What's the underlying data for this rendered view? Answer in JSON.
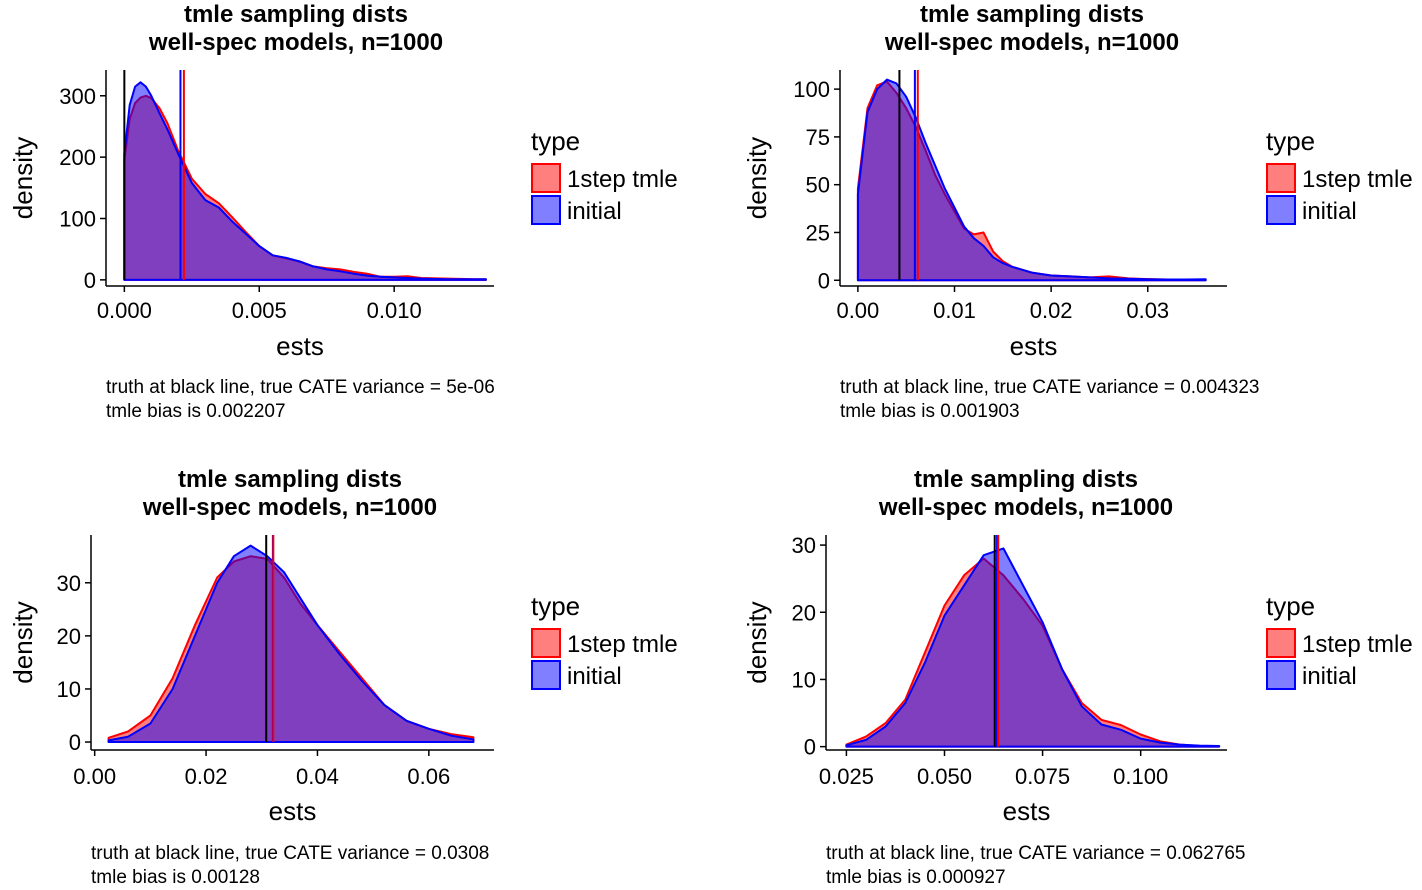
{
  "colors": {
    "tmle": "#ff0000",
    "tmle_fill": "rgba(255,0,0,0.5)",
    "initial": "#0000ff",
    "initial_fill": "rgba(0,0,255,0.5)",
    "truth": "#000000",
    "axis": "#000000"
  },
  "chart_data": [
    {
      "type": "area",
      "title": "tmle sampling dists",
      "subtitle": "well-spec models, n=1000",
      "xlabel": "ests",
      "ylabel": "density",
      "xlim": [
        -0.00068,
        0.0137
      ],
      "ylim": [
        -10,
        342
      ],
      "xticks": [
        0,
        0.005,
        0.01
      ],
      "xtick_labels": [
        "0.000",
        "0.005",
        "0.010"
      ],
      "yticks": [
        0,
        100,
        200,
        300
      ],
      "ytick_labels": [
        "0",
        "100",
        "200",
        "300"
      ],
      "grid": false,
      "legend": {
        "position": "right",
        "title": "type",
        "entries": [
          "1step tmle",
          "initial"
        ]
      },
      "caption": [
        "truth at black line, true CATE variance = 5e-06",
        "tmle bias is 0.002207"
      ],
      "vlines": {
        "truth": 0.0,
        "tmle_mean": 0.002207,
        "initial_mean": 0.00208
      },
      "series": [
        {
          "name": "1step tmle",
          "x": [
            0,
            0.0002,
            0.0004,
            0.0006,
            0.0008,
            0.001,
            0.0013,
            0.0016,
            0.002,
            0.0025,
            0.003,
            0.0035,
            0.004,
            0.0045,
            0.005,
            0.0055,
            0.006,
            0.0065,
            0.007,
            0.0075,
            0.008,
            0.0085,
            0.009,
            0.0095,
            0.01,
            0.0105,
            0.011,
            0.012,
            0.013,
            0.0134
          ],
          "y": [
            195,
            262,
            288,
            297,
            300,
            296,
            280,
            255,
            210,
            165,
            140,
            125,
            102,
            78,
            55,
            40,
            35,
            30,
            22,
            19,
            17,
            13,
            10,
            5,
            5,
            6,
            3,
            2,
            1,
            1
          ]
        },
        {
          "name": "initial",
          "x": [
            0,
            0.0002,
            0.0004,
            0.0006,
            0.0008,
            0.001,
            0.0013,
            0.0016,
            0.002,
            0.0025,
            0.003,
            0.0035,
            0.004,
            0.0045,
            0.005,
            0.0055,
            0.006,
            0.0065,
            0.007,
            0.0075,
            0.008,
            0.0085,
            0.009,
            0.0095,
            0.01,
            0.0105,
            0.011,
            0.012,
            0.013,
            0.0134
          ],
          "y": [
            205,
            285,
            315,
            322,
            315,
            300,
            272,
            245,
            205,
            158,
            130,
            118,
            95,
            75,
            55,
            40,
            36,
            30,
            22,
            17,
            14,
            10,
            7,
            5,
            4,
            3,
            2,
            1,
            1,
            1
          ]
        }
      ]
    },
    {
      "type": "area",
      "title": "tmle sampling dists",
      "subtitle": "well-spec models, n=1000",
      "xlabel": "ests",
      "ylabel": "density",
      "xlim": [
        -0.00185,
        0.0382
      ],
      "ylim": [
        -3,
        110
      ],
      "xticks": [
        0,
        0.01,
        0.02,
        0.03
      ],
      "xtick_labels": [
        "0.00",
        "0.01",
        "0.02",
        "0.03"
      ],
      "yticks": [
        0,
        25,
        50,
        75,
        100
      ],
      "ytick_labels": [
        "0",
        "25",
        "50",
        "75",
        "100"
      ],
      "grid": false,
      "legend": {
        "position": "right",
        "title": "type",
        "entries": [
          "1step tmle",
          "initial"
        ]
      },
      "caption": [
        "truth at black line, true CATE variance = 0.004323",
        "tmle bias is 0.001903"
      ],
      "vlines": {
        "truth": 0.0043,
        "tmle_mean": 0.0062,
        "initial_mean": 0.0059
      },
      "series": [
        {
          "name": "1step tmle",
          "x": [
            0,
            0.001,
            0.002,
            0.003,
            0.004,
            0.005,
            0.006,
            0.007,
            0.008,
            0.009,
            0.01,
            0.011,
            0.012,
            0.013,
            0.014,
            0.015,
            0.016,
            0.018,
            0.02,
            0.022,
            0.024,
            0.026,
            0.028,
            0.03,
            0.032,
            0.034,
            0.036
          ],
          "y": [
            48,
            90,
            102,
            104,
            98,
            90,
            80,
            68,
            55,
            45,
            36,
            27,
            24,
            25,
            15,
            10,
            7,
            4,
            2.5,
            2,
            1.5,
            2,
            1,
            0.6,
            0.4,
            0.3,
            0.2
          ]
        },
        {
          "name": "initial",
          "x": [
            0,
            0.001,
            0.002,
            0.003,
            0.004,
            0.005,
            0.006,
            0.007,
            0.008,
            0.009,
            0.01,
            0.011,
            0.012,
            0.013,
            0.014,
            0.015,
            0.016,
            0.018,
            0.02,
            0.022,
            0.024,
            0.026,
            0.028,
            0.03,
            0.032,
            0.034,
            0.036
          ],
          "y": [
            45,
            88,
            100,
            105,
            103,
            96,
            85,
            72,
            60,
            48,
            38,
            28,
            22,
            18,
            12,
            9,
            7,
            4,
            2.5,
            2,
            1.5,
            1,
            0.8,
            0.5,
            0.4,
            0.4,
            0.5
          ]
        }
      ]
    },
    {
      "type": "area",
      "title": "tmle sampling dists",
      "subtitle": "well-spec models, n=1000",
      "xlabel": "ests",
      "ylabel": "density",
      "xlim": [
        -0.00066,
        0.0717
      ],
      "ylim": [
        -1.5,
        39
      ],
      "xticks": [
        0,
        0.02,
        0.04,
        0.06
      ],
      "xtick_labels": [
        "0.00",
        "0.02",
        "0.04",
        "0.06"
      ],
      "yticks": [
        0,
        10,
        20,
        30
      ],
      "ytick_labels": [
        "0",
        "10",
        "20",
        "30"
      ],
      "grid": false,
      "legend": {
        "position": "right",
        "title": "type",
        "entries": [
          "1step tmle",
          "initial"
        ]
      },
      "caption": [
        "truth at black line, true CATE variance = 0.0308",
        "tmle bias is 0.00128"
      ],
      "vlines": {
        "truth": 0.0308,
        "tmle_mean": 0.03208,
        "initial_mean": 0.032
      },
      "series": [
        {
          "name": "1step tmle",
          "x": [
            0.0025,
            0.006,
            0.01,
            0.014,
            0.018,
            0.022,
            0.025,
            0.028,
            0.031,
            0.034,
            0.037,
            0.04,
            0.044,
            0.048,
            0.052,
            0.056,
            0.06,
            0.064,
            0.068
          ],
          "y": [
            0.8,
            2,
            5,
            12,
            22,
            31,
            34,
            35,
            34.5,
            31,
            26,
            22,
            17,
            12,
            7,
            4,
            2.5,
            1.5,
            0.9
          ]
        },
        {
          "name": "initial",
          "x": [
            0.0025,
            0.006,
            0.01,
            0.014,
            0.018,
            0.022,
            0.025,
            0.028,
            0.031,
            0.034,
            0.037,
            0.04,
            0.044,
            0.048,
            0.052,
            0.056,
            0.06,
            0.064,
            0.068
          ],
          "y": [
            0.3,
            1,
            3.5,
            10,
            20,
            30,
            35,
            37,
            35,
            32,
            27,
            22,
            16.5,
            11.5,
            7,
            4,
            2.5,
            1.2,
            0.5
          ]
        }
      ]
    },
    {
      "type": "area",
      "title": "tmle sampling dists",
      "subtitle": "well-spec models, n=1000",
      "xlabel": "ests",
      "ylabel": "density",
      "xlim": [
        0.0198,
        0.122
      ],
      "ylim": [
        -0.5,
        31.5
      ],
      "xticks": [
        0.025,
        0.05,
        0.075,
        0.1
      ],
      "xtick_labels": [
        "0.025",
        "0.050",
        "0.075",
        "0.100"
      ],
      "yticks": [
        0,
        10,
        20,
        30
      ],
      "ytick_labels": [
        "0",
        "10",
        "20",
        "30"
      ],
      "grid": false,
      "legend": {
        "position": "right",
        "title": "type",
        "entries": [
          "1step tmle",
          "initial"
        ]
      },
      "caption": [
        "truth at black line, true CATE variance = 0.062765",
        "tmle bias is 0.000927"
      ],
      "vlines": {
        "truth": 0.0628,
        "tmle_mean": 0.0637,
        "initial_mean": 0.0634
      },
      "series": [
        {
          "name": "1step tmle",
          "x": [
            0.025,
            0.03,
            0.035,
            0.04,
            0.045,
            0.05,
            0.055,
            0.06,
            0.065,
            0.07,
            0.075,
            0.08,
            0.085,
            0.09,
            0.095,
            0.1,
            0.105,
            0.11,
            0.115,
            0.12
          ],
          "y": [
            0.3,
            1.5,
            3.5,
            7,
            14,
            21,
            25.5,
            28,
            25.5,
            22,
            18,
            11.5,
            6.5,
            4,
            3.2,
            1.8,
            0.8,
            0.3,
            0.1,
            0.05
          ]
        },
        {
          "name": "initial",
          "x": [
            0.025,
            0.03,
            0.035,
            0.04,
            0.045,
            0.05,
            0.055,
            0.06,
            0.065,
            0.07,
            0.075,
            0.08,
            0.085,
            0.09,
            0.095,
            0.1,
            0.105,
            0.11,
            0.115,
            0.12
          ],
          "y": [
            0.2,
            1,
            3,
            6.5,
            12.5,
            19.5,
            24,
            28.5,
            29.5,
            24,
            18.5,
            11.5,
            6,
            3.3,
            2.5,
            1.2,
            0.6,
            0.3,
            0.15,
            0.1
          ]
        }
      ]
    }
  ]
}
